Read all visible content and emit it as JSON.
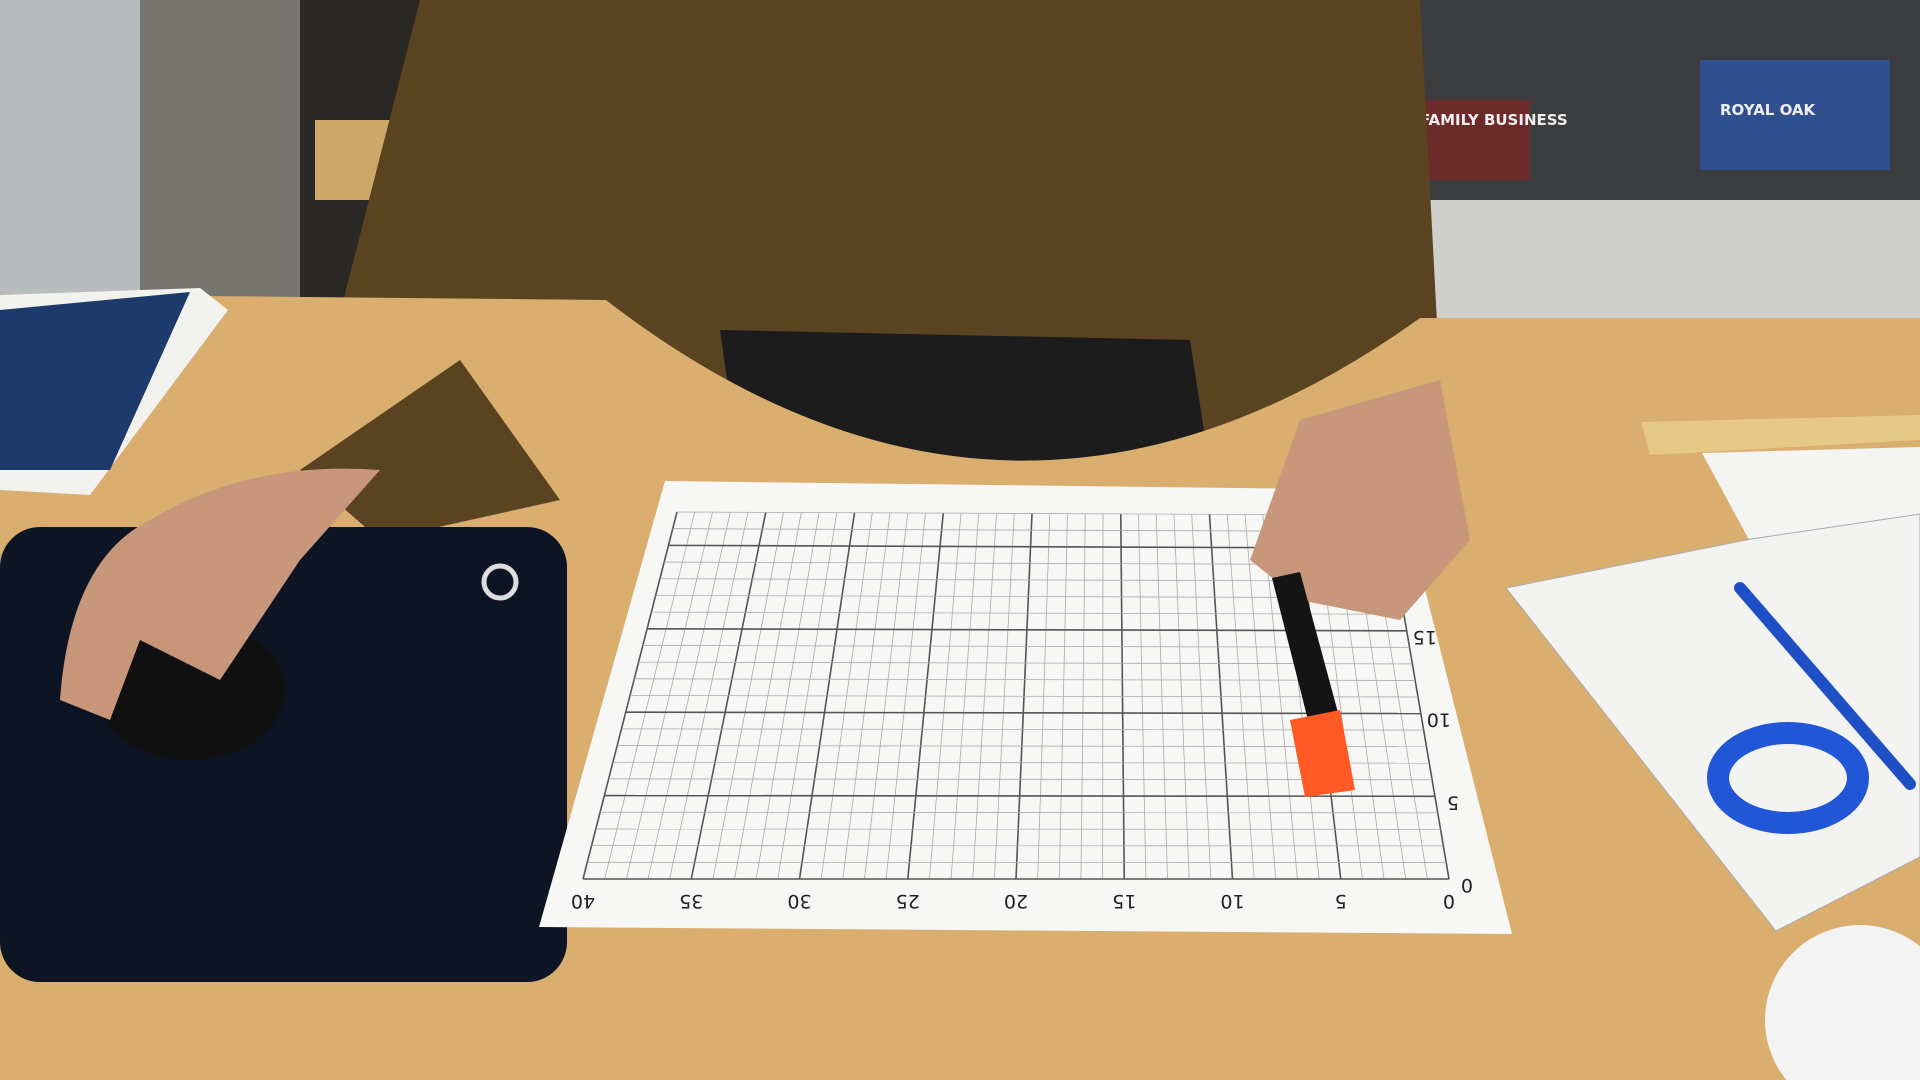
{
  "graph_paper": {
    "x_labels": [
      40,
      35,
      30,
      25,
      20,
      15,
      10,
      5,
      0
    ],
    "y_labels": [
      0,
      5,
      10,
      15
    ]
  },
  "shelf_labels": [
    "FAMILY BUSINESS",
    "ROYAL OAK"
  ]
}
